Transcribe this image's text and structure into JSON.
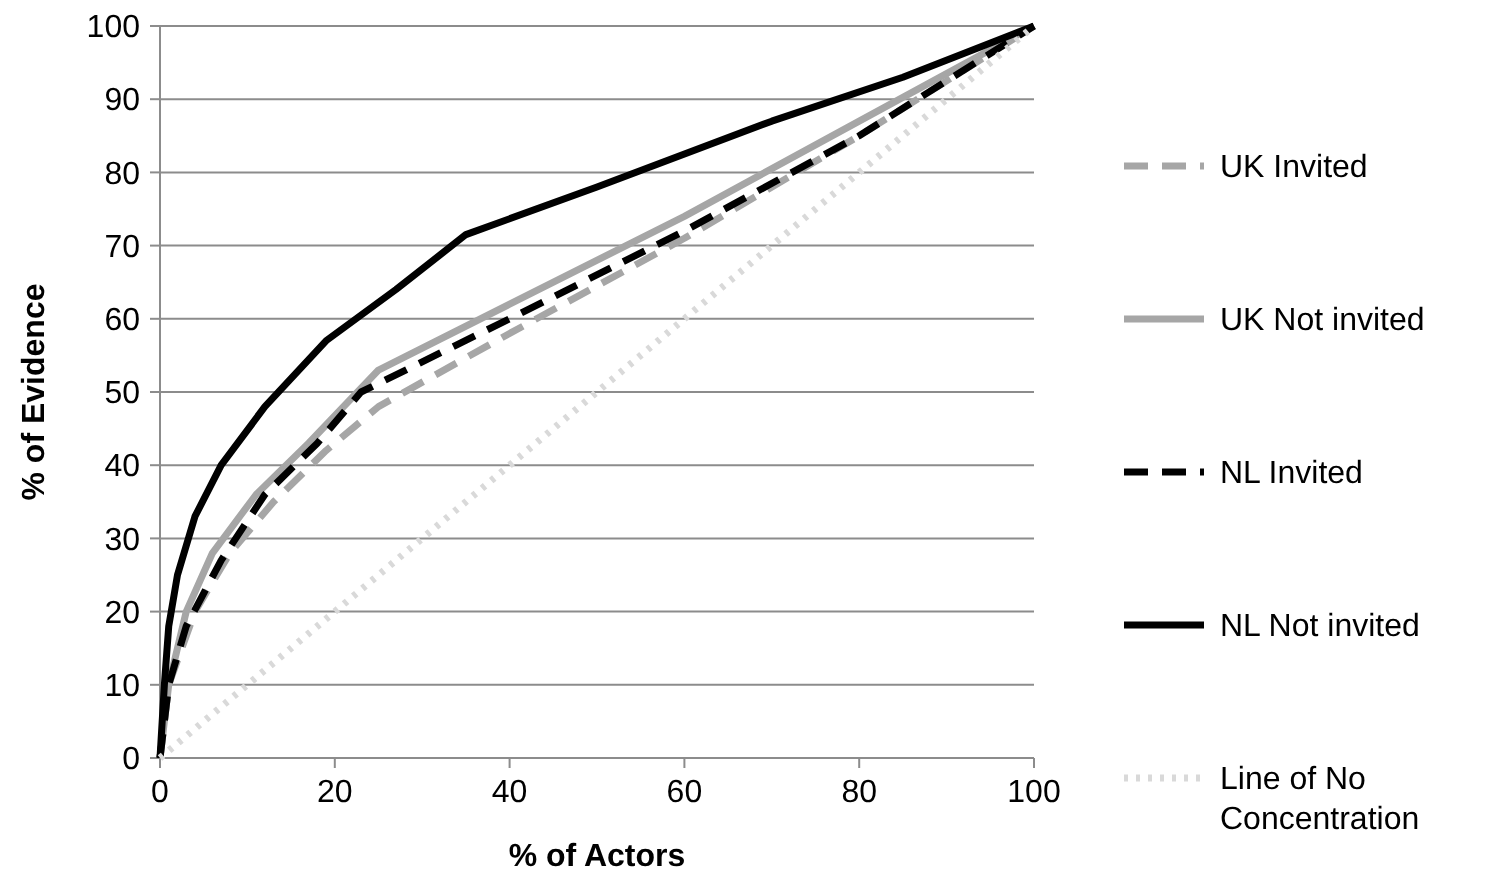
{
  "chart_data": {
    "type": "line",
    "xlabel": "% of Actors",
    "ylabel": "% of Evidence",
    "xlim": [
      0,
      100
    ],
    "ylim": [
      0,
      100
    ],
    "xticks": [
      0,
      20,
      40,
      60,
      80,
      100
    ],
    "yticks": [
      0,
      10,
      20,
      30,
      40,
      50,
      60,
      70,
      80,
      90,
      100
    ],
    "grid": "y",
    "legend": "right",
    "series": [
      {
        "name": "UK Invited",
        "color": "#a6a6a6",
        "line_style": "dashed",
        "x": [
          0,
          1,
          4,
          8,
          13,
          19,
          25,
          40,
          60,
          80,
          100
        ],
        "values": [
          0,
          10,
          20,
          28,
          35,
          42,
          48,
          58,
          71,
          85,
          100
        ]
      },
      {
        "name": "UK Not invited",
        "color": "#a6a6a6",
        "line_style": "solid",
        "x": [
          0,
          1,
          3,
          6,
          11,
          17,
          25,
          40,
          60,
          80,
          100
        ],
        "values": [
          0,
          10,
          20,
          28,
          36,
          43,
          53,
          62,
          74,
          87,
          100
        ]
      },
      {
        "name": "NL Invited",
        "color": "#000000",
        "line_style": "dashed",
        "x": [
          0,
          1,
          3,
          7,
          12,
          18,
          23,
          40,
          60,
          80,
          100
        ],
        "values": [
          0,
          10,
          18,
          27,
          36,
          43,
          50,
          60,
          72,
          85,
          100
        ]
      },
      {
        "name": "NL Not invited",
        "color": "#000000",
        "line_style": "solid",
        "x": [
          0,
          0.5,
          1,
          2,
          4,
          7,
          12,
          19,
          27,
          35,
          50,
          70,
          85,
          100
        ],
        "values": [
          0,
          10,
          18,
          25,
          33,
          40,
          48,
          57,
          64,
          71.5,
          78,
          87,
          93,
          100
        ]
      },
      {
        "name": "Line of No Concentration",
        "color": "#d9d9d9",
        "line_style": "dotted",
        "x": [
          0,
          100
        ],
        "values": [
          0,
          100
        ]
      }
    ]
  }
}
